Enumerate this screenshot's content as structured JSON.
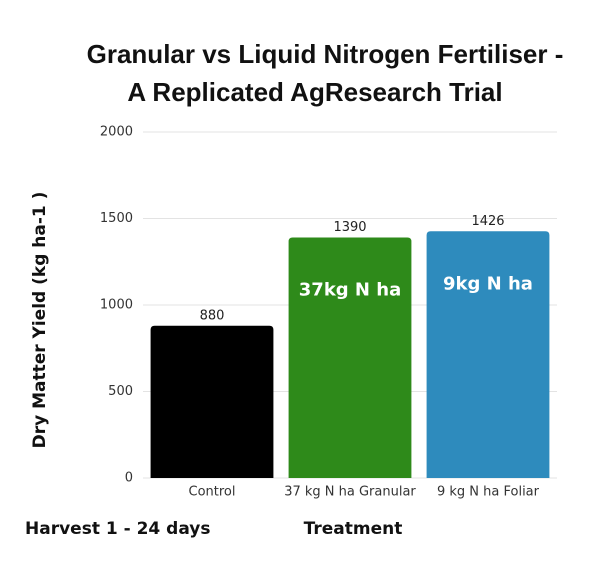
{
  "chart_data": {
    "type": "bar",
    "title": [
      "Granular vs Liquid Nitrogen Fertiliser -",
      "A Replicated AgResearch Trial"
    ],
    "y_label": "Dry Matter Yield (kg ha-1 )",
    "x_label": "Treatment",
    "footnote": "Harvest 1 - 24 days",
    "categories": [
      "Control",
      "37 kg N ha Granular",
      "9 kg N ha Foliar"
    ],
    "values": [
      880,
      1390,
      1426
    ],
    "colors": [
      "#000000",
      "#2e8a1a",
      "#2e8bbd"
    ],
    "bar_labels": [
      null,
      "37kg N ha",
      "9kg N ha"
    ],
    "ylim": [
      0,
      2000
    ],
    "yticks": [
      0,
      500,
      1000,
      1500,
      2000
    ],
    "grid": true
  }
}
